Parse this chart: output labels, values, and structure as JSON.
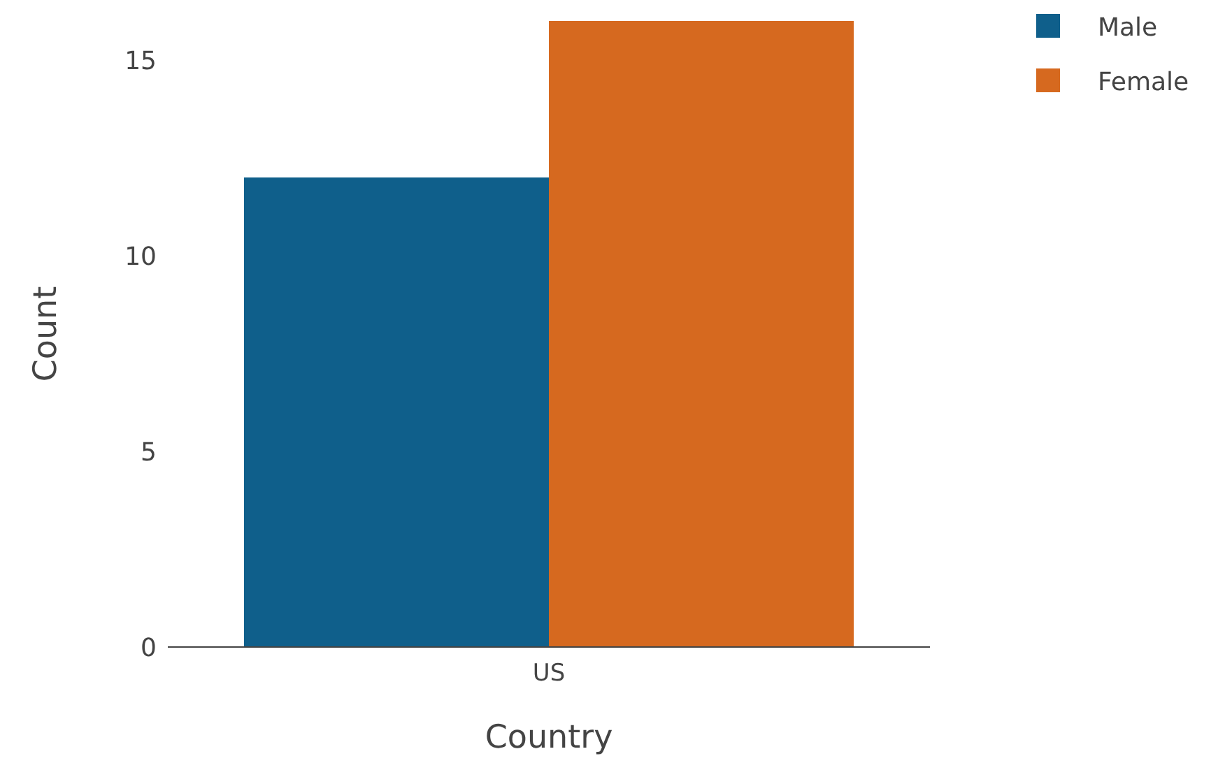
{
  "chart_data": {
    "type": "bar",
    "xlabel": "Country",
    "ylabel": "Count",
    "categories": [
      "US"
    ],
    "series": [
      {
        "name": "Male",
        "color": "#0f5f8b",
        "values": [
          12
        ]
      },
      {
        "name": "Female",
        "color": "#d6691f",
        "values": [
          16
        ]
      }
    ],
    "ylim": [
      0,
      16
    ],
    "yticks": [
      0,
      5,
      10,
      15
    ],
    "legend": "top right"
  }
}
